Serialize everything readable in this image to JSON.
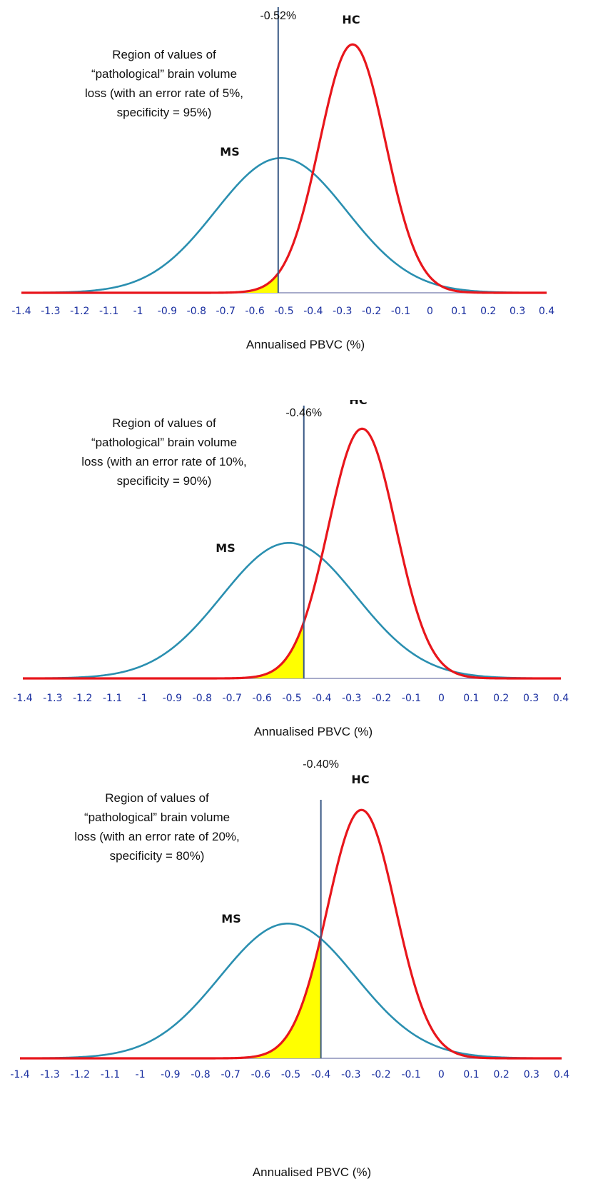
{
  "chart_data": [
    {
      "type": "line",
      "xlabel": "Annualised PBVC (%)",
      "ticks": [
        "-1.4",
        "-1.3",
        "-1.2",
        "-1.1",
        "-1",
        "-0.9",
        "-0.8",
        "-0.7",
        "-0.6",
        "-0.5",
        "-0.4",
        "-0.3",
        "-0.2",
        "-0.1",
        "0",
        "0.1",
        "0.2",
        "0.3",
        "0.4"
      ],
      "xlim": [
        -1.4,
        0.4
      ],
      "cutoff": {
        "value": -0.52,
        "label": "-0.52%"
      },
      "annotation": [
        "Region of values of",
        "“pathological” brain volume",
        "loss (with an error rate of 5%,",
        "specificity = 95%)"
      ],
      "series": [
        {
          "name": "MS",
          "color": "#2a8fb0",
          "mean": -0.51,
          "sd": 0.225,
          "peak_frac": 0.51
        },
        {
          "name": "HC",
          "color": "#e8161c",
          "mean": -0.265,
          "sd": 0.113,
          "peak_frac": 0.94
        }
      ],
      "shade_color": "#ffff00"
    },
    {
      "type": "line",
      "xlabel": "Annualised PBVC (%)",
      "ticks": [
        "-1.4",
        "-1.3",
        "-1.2",
        "-1.1",
        "-1",
        "-0.9",
        "-0.8",
        "-0.7",
        "-0.6",
        "-0.5",
        "-0.4",
        "-0.3",
        "-0.2",
        "-0.1",
        "0",
        "0.1",
        "0.2",
        "0.3",
        "0.4"
      ],
      "xlim": [
        -1.4,
        0.4
      ],
      "cutoff": {
        "value": -0.46,
        "label": "-0.46%"
      },
      "annotation": [
        "Region of values of",
        "“pathological” brain volume",
        "loss (with an error rate of 10%,",
        "specificity = 90%)"
      ],
      "series": [
        {
          "name": "MS",
          "color": "#2a8fb0",
          "mean": -0.51,
          "sd": 0.225,
          "peak_frac": 0.51
        },
        {
          "name": "HC",
          "color": "#e8161c",
          "mean": -0.265,
          "sd": 0.113,
          "peak_frac": 0.94
        }
      ],
      "shade_color": "#ffff00"
    },
    {
      "type": "line",
      "xlabel": "Annualised PBVC (%)",
      "ticks": [
        "-1.4",
        "-1.3",
        "-1.2",
        "-1.1",
        "-1",
        "-0.9",
        "-0.8",
        "-0.7",
        "-0.6",
        "-0.5",
        "-0.4",
        "-0.3",
        "-0.2",
        "-0.1",
        "0",
        "0.1",
        "0.2",
        "0.3",
        "0.4"
      ],
      "xlim": [
        -1.4,
        0.4
      ],
      "cutoff": {
        "value": -0.4,
        "label": "-0.40%"
      },
      "annotation": [
        "Region of values of",
        "“pathological” brain volume",
        "loss (with an error rate of 20%,",
        "specificity = 80%)"
      ],
      "series": [
        {
          "name": "MS",
          "color": "#2a8fb0",
          "mean": -0.51,
          "sd": 0.225,
          "peak_frac": 0.51
        },
        {
          "name": "HC",
          "color": "#e8161c",
          "mean": -0.265,
          "sd": 0.113,
          "peak_frac": 0.94
        }
      ],
      "shade_color": "#ffff00"
    }
  ]
}
